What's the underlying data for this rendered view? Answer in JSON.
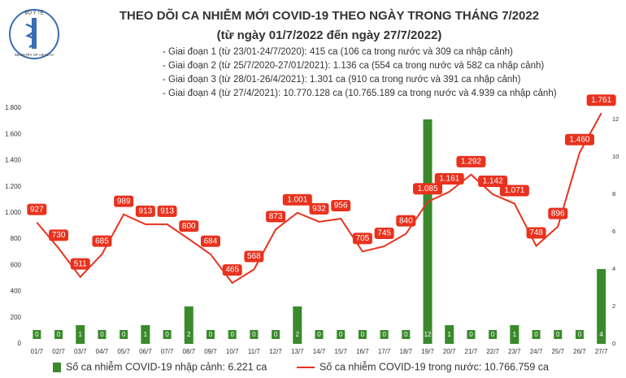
{
  "logo": {
    "top": "BỘ Y TẾ",
    "bottom": "MINISTRY OF HEALTH"
  },
  "chart_data": {
    "type": "combo",
    "title": "THEO DÕI CA NHIỄM MỚI COVID-19 THEO NGÀY TRONG THÁNG 7/2022",
    "subtitle": "(từ ngày 01/7/2022 đến ngày 27/7/2022)",
    "notes": [
      "- Giai đoạn 1 (từ 23/01-24/7/2020): 415 ca (106 ca trong nước và 309 ca nhập cảnh)",
      "- Giai đoạn 2 (từ 25/7/2020-27/01/2021): 1.136 ca (554 ca trong nước và 582 ca nhập cảnh)",
      "- Giai đoạn 3 (từ 28/01-26/4/2021): 1.301 ca (910 ca trong nước và 391 ca nhập cảnh)",
      "- Giai đoạn 4 (từ 27/4/2021): 10.770.128 ca (10.765.189 ca trong nước và 4.939 ca nhập cảnh)"
    ],
    "categories": [
      "01/7",
      "02/7",
      "03/7",
      "04/7",
      "05/7",
      "06/7",
      "07/7",
      "08/7",
      "09/7",
      "10/7",
      "11/7",
      "12/7",
      "13/7",
      "14/7",
      "15/7",
      "16/7",
      "17/7",
      "18/7",
      "19/7",
      "20/7",
      "21/7",
      "22/7",
      "23/7",
      "24/7",
      "25/7",
      "26/7",
      "27/7"
    ],
    "series": [
      {
        "name": "Số ca nhiễm COVID-19 nhập cảnh: 6.221 ca",
        "type": "bar",
        "axis": "y2",
        "color": "#3a8a2c",
        "values": [
          0,
          0,
          1,
          0,
          0,
          1,
          0,
          2,
          0,
          0,
          0,
          0,
          2,
          0,
          0,
          0,
          0,
          0,
          12,
          1,
          0,
          0,
          1,
          0,
          0,
          0,
          4
        ]
      },
      {
        "name": "Số ca nhiễm COVID-19 trong nước: 10.766.759 ca",
        "type": "line",
        "color": "#e8321e",
        "values": [
          927,
          730,
          511,
          685,
          989,
          913,
          913,
          800,
          684,
          465,
          568,
          873,
          1001,
          932,
          956,
          705,
          745,
          840,
          1085,
          1161,
          1292,
          1142,
          1071,
          748,
          896,
          1460,
          1761
        ],
        "value_labels": [
          "927",
          "730",
          "511",
          "685",
          "989",
          "913",
          "913",
          "800",
          "684",
          "465",
          "568",
          "873",
          "1.001",
          "932",
          "956",
          "705",
          "745",
          "840",
          "1.085",
          "1.161",
          "1.292",
          "1.142",
          "1.071",
          "748",
          "896",
          "1.460",
          "1.761"
        ]
      }
    ],
    "ylim": [
      0,
      1800
    ],
    "yticks": [
      0,
      200,
      400,
      600,
      800,
      {
        "value": 1000,
        "label": "1.000"
      },
      {
        "value": 1200,
        "label": "1.200"
      },
      {
        "value": 1400,
        "label": "1.400"
      },
      {
        "value": 1600,
        "label": "1.600"
      },
      {
        "value": 1800,
        "label": "1.800"
      }
    ],
    "y2lim": [
      0,
      12.6
    ],
    "y2ticks": [
      0,
      2,
      4,
      6,
      8,
      10,
      12
    ],
    "grid": false
  }
}
